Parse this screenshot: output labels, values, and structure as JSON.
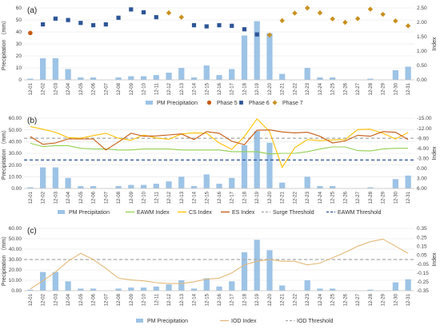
{
  "chart_data": [
    {
      "type": "bar",
      "panel_label": "(a)",
      "categories": [
        "12-01",
        "12-02",
        "12-03",
        "12-04",
        "12-05",
        "12-06",
        "12-07",
        "12-08",
        "12-09",
        "12-10",
        "12-11",
        "12-12",
        "12-13",
        "12-14",
        "12-15",
        "12-16",
        "12-17",
        "12-18",
        "12-19",
        "12-20",
        "12-21",
        "12-22",
        "12-23",
        "12-24",
        "12-25",
        "12-26",
        "12-27",
        "12-28",
        "12-29",
        "12-30",
        "12-31"
      ],
      "ylabel": "Precipitation （mm）",
      "y2label": "Index",
      "ylim": [
        0,
        60
      ],
      "y2lim": [
        0,
        2.5
      ],
      "yticks": [
        "0",
        "10",
        "20",
        "30",
        "40",
        "50",
        "60"
      ],
      "y2ticks": [
        "0.00",
        "0.50",
        "1.00",
        "1.50",
        "2.00",
        "2.50"
      ],
      "bar_series": {
        "name": "PM Precipitation",
        "color": "#9dc3e6",
        "values": [
          1,
          18,
          18,
          9,
          2,
          2,
          0,
          2,
          3,
          3,
          4,
          6,
          10,
          2,
          12,
          4,
          9,
          37,
          49,
          39,
          5,
          0,
          10,
          2,
          2,
          0,
          0,
          1,
          0,
          8,
          11
        ]
      },
      "scatter_series": [
        {
          "name": "Phase 5",
          "color": "#c55a11",
          "marker": "circle",
          "x": [
            0
          ],
          "y": [
            1.63
          ]
        },
        {
          "name": "Phase 6",
          "color": "#2e5597",
          "marker": "square",
          "x": [
            1,
            2,
            3,
            4,
            5,
            6,
            7,
            8,
            9,
            10,
            13,
            14,
            15,
            16,
            17,
            18
          ],
          "y": [
            1.93,
            2.13,
            2.08,
            1.98,
            1.9,
            1.93,
            2.16,
            2.45,
            2.35,
            2.18,
            1.9,
            1.86,
            1.9,
            1.88,
            1.76,
            1.58
          ]
        },
        {
          "name": "Phase 7",
          "color": "#c9901e",
          "marker": "diamond",
          "x": [
            11,
            12,
            19,
            20,
            21,
            22,
            23,
            24,
            25,
            26,
            27,
            28,
            29,
            30
          ],
          "y": [
            2.33,
            2.18,
            1.56,
            2.06,
            2.32,
            2.5,
            2.33,
            2.12,
            2.0,
            2.13,
            2.46,
            2.28,
            2.05,
            1.88
          ]
        }
      ],
      "legend": [
        "PM Precipitation",
        "Phase 5",
        "Phase 6",
        "Phase 7"
      ],
      "legend_position": "bottom"
    },
    {
      "type": "bar",
      "panel_label": "(b)",
      "categories": [
        "12-01",
        "12-02",
        "12-03",
        "12-04",
        "12-05",
        "12-06",
        "12-07",
        "12-08",
        "12-09",
        "12-10",
        "12-11",
        "12-12",
        "12-13",
        "12-14",
        "12-15",
        "12-16",
        "12-17",
        "12-18",
        "12-19",
        "12-20",
        "12-21",
        "12-22",
        "12-23",
        "12-24",
        "12-25",
        "12-26",
        "12-27",
        "12-28",
        "12-29",
        "12-30",
        "12-31"
      ],
      "ylabel": "Precipitation （mm）",
      "y2label": "Index",
      "ylim": [
        0,
        60
      ],
      "y2lim": [
        -15,
        6
      ],
      "y2_reversed": true,
      "yticks": [
        "0.00",
        "10.00",
        "20.00",
        "30.00",
        "40.00",
        "50.00",
        "60.00"
      ],
      "y2ticks": [
        "6.00",
        "3.00",
        "0.00",
        "-3.00",
        "-6.00",
        "-9.00",
        "-12.00",
        "-15.00"
      ],
      "bar_series": {
        "name": "PM Precipitation",
        "color": "#9dc3e6",
        "values": [
          1,
          18,
          18,
          9,
          2,
          2,
          0,
          2,
          3,
          3,
          4,
          6,
          10,
          2,
          12,
          4,
          9,
          37,
          49,
          39,
          5,
          0,
          10,
          2,
          2,
          0,
          0,
          1,
          0,
          8,
          11
        ]
      },
      "line_series": [
        {
          "name": "EAWM Index",
          "color": "#92d050",
          "values": [
            -7.5,
            -6.5,
            -6.8,
            -6.8,
            -6.0,
            -5.8,
            -5.8,
            -5.5,
            -5.5,
            -5.8,
            -5.8,
            -5.8,
            -5.5,
            -5.5,
            -5.5,
            -5.5,
            -5.0,
            -5.0,
            -5.0,
            -4.3,
            -4.5,
            -4.5,
            -5.0,
            -5.8,
            -6.4,
            -6.4,
            -5.3,
            -5.2,
            -5.8,
            -6.0,
            -6.0
          ]
        },
        {
          "name": "CS Index",
          "color": "#ffc000",
          "values": [
            -12.5,
            -11.7,
            -10.8,
            -9.2,
            -9.0,
            -9.8,
            -10.5,
            -9.0,
            -8.4,
            -10.0,
            -9.1,
            -8.7,
            -10.3,
            -10.6,
            -10.5,
            -7.6,
            -5.7,
            -9.5,
            -14.8,
            -11.0,
            -0.3,
            -6.2,
            -8.6,
            -8.3,
            -8.5,
            -8.6,
            -11.6,
            -11.7,
            -10.5,
            -8.8,
            -10.7
          ]
        },
        {
          "name": "ES Index",
          "color": "#c55a11",
          "values": [
            -9.5,
            -7.2,
            -7.6,
            -8.8,
            -8.8,
            -8.8,
            -5.5,
            -7.9,
            -10.5,
            -9.6,
            -9.7,
            -10.0,
            -10.3,
            -8.6,
            -11.0,
            -10.5,
            -8.1,
            -7.1,
            -11.4,
            -11.5,
            -10.9,
            -10.6,
            -10.8,
            -9.6,
            -7.6,
            -8.2,
            -9.9,
            -9.6,
            -11.0,
            -10.8,
            -8.6
          ]
        }
      ],
      "threshold_series": [
        {
          "name": "Surge Threshold",
          "color": "#a6a6a6",
          "style": "dashed",
          "value": -9.0
        },
        {
          "name": "EAWM Threshold",
          "color": "#2e5597",
          "style": "dashed",
          "value": -2.5
        }
      ],
      "legend": [
        "PM Precipitation",
        "EAWM Index",
        "CS Index",
        "ES Index",
        "Surge Threshold",
        "EAWM Threshold"
      ],
      "legend_position": "bottom"
    },
    {
      "type": "bar",
      "panel_label": "(c)",
      "categories": [
        "12-01",
        "12-02",
        "12-03",
        "12-04",
        "12-05",
        "12-06",
        "12-07",
        "12-08",
        "12-09",
        "12-10",
        "12-11",
        "12-12",
        "12-13",
        "12-14",
        "12-15",
        "12-16",
        "12-17",
        "12-18",
        "12-19",
        "12-20",
        "12-21",
        "12-22",
        "12-23",
        "12-24",
        "12-25",
        "12-26",
        "12-27",
        "12-28",
        "12-29",
        "12-30",
        "12-31"
      ],
      "ylabel": "Precipitation （mm）",
      "y2label": "Index",
      "ylim": [
        0,
        60
      ],
      "y2lim": [
        -0.35,
        0.35
      ],
      "yticks": [
        "0.00",
        "10.00",
        "20.00",
        "30.00",
        "40.00",
        "50.00",
        "60.00"
      ],
      "y2ticks": [
        "-0.35",
        "-0.25",
        "-0.15",
        "-0.05",
        "0.05",
        "0.15",
        "0.25",
        "0.35"
      ],
      "bar_series": {
        "name": "PM Precipitation",
        "color": "#9dc3e6",
        "values": [
          1,
          18,
          18,
          9,
          2,
          2,
          0,
          2,
          3,
          3,
          4,
          6,
          10,
          2,
          12,
          4,
          9,
          37,
          49,
          39,
          5,
          0,
          10,
          2,
          2,
          0,
          0,
          1,
          0,
          8,
          11
        ]
      },
      "line_series": [
        {
          "name": "IOD Index",
          "color": "#e3b87a",
          "values": [
            -0.33,
            -0.24,
            -0.14,
            -0.02,
            0.07,
            0.0,
            -0.1,
            -0.21,
            -0.23,
            -0.24,
            -0.26,
            -0.27,
            -0.27,
            -0.25,
            -0.22,
            -0.21,
            -0.15,
            -0.06,
            -0.02,
            0.0,
            -0.02,
            -0.02,
            -0.06,
            -0.04,
            0.02,
            0.08,
            0.15,
            0.2,
            0.23,
            0.15,
            0.07
          ]
        }
      ],
      "threshold_series": [
        {
          "name": "IOD Threshold",
          "color": "#a6a6a6",
          "style": "dashed",
          "value": 0.0
        }
      ],
      "legend": [
        "PM Precipitation",
        "IOD Index",
        "IOD Threshold"
      ],
      "legend_position": "bottom"
    }
  ]
}
